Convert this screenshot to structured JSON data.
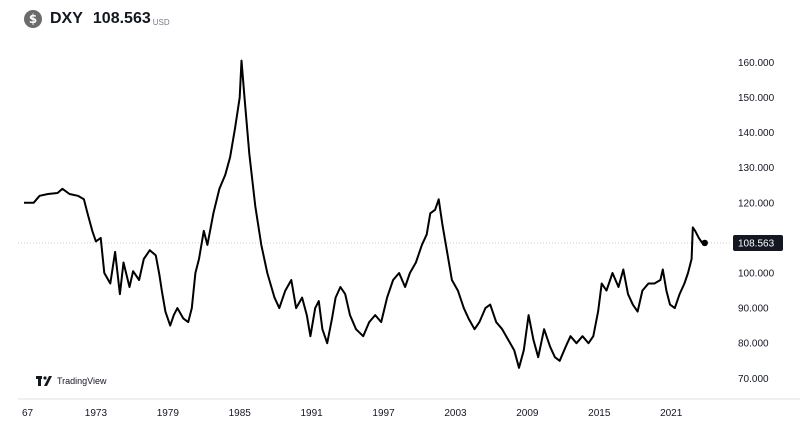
{
  "header": {
    "symbol": "DXY",
    "price": "108.563",
    "currency": "USD",
    "currency_icon": "dollar-coin-icon"
  },
  "branding": {
    "label": "TradingView",
    "logo_icon": "tradingview-logo-icon"
  },
  "colors": {
    "line": "#000000",
    "grid": "#b0b0b0",
    "price_badge": "#131722",
    "price_badge_text": "#ffffff"
  },
  "chart_data": {
    "type": "line",
    "title": "",
    "xlabel": "",
    "ylabel": "",
    "ylim": [
      68,
      162
    ],
    "xlim": [
      1967.0,
      2023.9
    ],
    "x_ticks": [
      "67",
      "1973",
      "1979",
      "1985",
      "1991",
      "1997",
      "2003",
      "2009",
      "2015",
      "2021"
    ],
    "y_ticks": [
      "160.000",
      "150.000",
      "140.000",
      "130.000",
      "120.000",
      "110.000",
      "100.000",
      "90.000",
      "80.000",
      "70.000"
    ],
    "last_price_label": "108.563",
    "last_price_value": 108.563,
    "series": [
      {
        "x": [
          1967.0,
          1967.8,
          1968.3,
          1969.0,
          1969.8,
          1970.2,
          1970.8,
          1971.5,
          1972.0,
          1972.3,
          1972.7,
          1973.0,
          1973.4,
          1973.7,
          1974.2,
          1974.6,
          1975.0,
          1975.3,
          1975.8,
          1976.1,
          1976.6,
          1977.0,
          1977.5,
          1978.0,
          1978.3,
          1978.5,
          1978.8,
          1979.2,
          1979.5,
          1979.8,
          1980.3,
          1980.7,
          1981.0,
          1981.3,
          1981.6,
          1982.0,
          1982.3,
          1982.8,
          1983.3,
          1983.8,
          1984.2,
          1984.6,
          1985.0,
          1985.15,
          1985.4,
          1985.8,
          1986.3,
          1986.8,
          1987.3,
          1987.9,
          1988.3,
          1988.8,
          1989.3,
          1989.7,
          1990.2,
          1990.6,
          1990.9,
          1991.3,
          1991.6,
          1991.9,
          1992.3,
          1992.7,
          1993.0,
          1993.4,
          1993.8,
          1994.2,
          1994.7,
          1995.3,
          1995.8,
          1996.3,
          1996.8,
          1997.3,
          1997.8,
          1998.3,
          1998.8,
          1999.2,
          1999.7,
          2000.2,
          2000.6,
          2000.9,
          2001.3,
          2001.6,
          2001.9,
          2002.3,
          2002.7,
          2003.2,
          2003.7,
          2004.1,
          2004.6,
          2005.0,
          2005.5,
          2005.9,
          2006.4,
          2006.9,
          2007.4,
          2007.9,
          2008.3,
          2008.7,
          2009.1,
          2009.5,
          2009.9,
          2010.4,
          2010.9,
          2011.3,
          2011.7,
          2012.2,
          2012.6,
          2013.1,
          2013.6,
          2014.1,
          2014.5,
          2014.9,
          2015.2,
          2015.6,
          2016.1,
          2016.6,
          2017.0,
          2017.4,
          2017.8,
          2018.2,
          2018.6,
          2019.1,
          2019.6,
          2020.1,
          2020.3,
          2020.6,
          2020.9,
          2021.3,
          2021.7,
          2022.1,
          2022.4,
          2022.7,
          2022.8,
          2023.0,
          2023.3,
          2023.6,
          2023.8
        ],
        "values": [
          120.0,
          120.0,
          122.0,
          122.5,
          122.8,
          124.0,
          122.5,
          122.0,
          121.0,
          117.0,
          112.0,
          109.0,
          110.0,
          100.0,
          97.0,
          106.0,
          94.0,
          103.0,
          96.0,
          100.5,
          98.0,
          104.0,
          106.5,
          105.0,
          99.5,
          95.0,
          89.0,
          85.0,
          88.0,
          90.0,
          87.0,
          86.0,
          90.0,
          100.0,
          104.0,
          112.0,
          108.0,
          117.0,
          124.0,
          128.0,
          133.0,
          141.0,
          150.0,
          160.5,
          150.0,
          134.0,
          119.0,
          108.0,
          100.0,
          93.0,
          90.0,
          95.0,
          98.0,
          90.0,
          93.0,
          88.0,
          82.0,
          90.0,
          92.0,
          84.0,
          80.0,
          87.0,
          93.0,
          96.0,
          94.0,
          88.0,
          84.0,
          82.0,
          86.0,
          88.0,
          86.0,
          93.0,
          98.0,
          100.0,
          96.0,
          100.0,
          103.0,
          108.0,
          111.0,
          117.0,
          118.0,
          121.0,
          114.0,
          106.0,
          98.0,
          95.0,
          90.0,
          87.0,
          84.0,
          86.0,
          90.0,
          91.0,
          86.0,
          84.0,
          81.0,
          78.0,
          73.0,
          78.0,
          88.0,
          81.0,
          76.0,
          84.0,
          79.0,
          76.0,
          75.0,
          79.0,
          82.0,
          80.0,
          82.0,
          80.0,
          82.0,
          89.0,
          97.0,
          95.0,
          100.0,
          96.0,
          101.0,
          94.0,
          91.0,
          89.0,
          95.0,
          97.0,
          97.0,
          98.0,
          101.0,
          95.0,
          91.0,
          90.0,
          94.0,
          97.0,
          100.0,
          104.0,
          113.0,
          112.0,
          110.0,
          108.5,
          108.563
        ]
      }
    ]
  }
}
